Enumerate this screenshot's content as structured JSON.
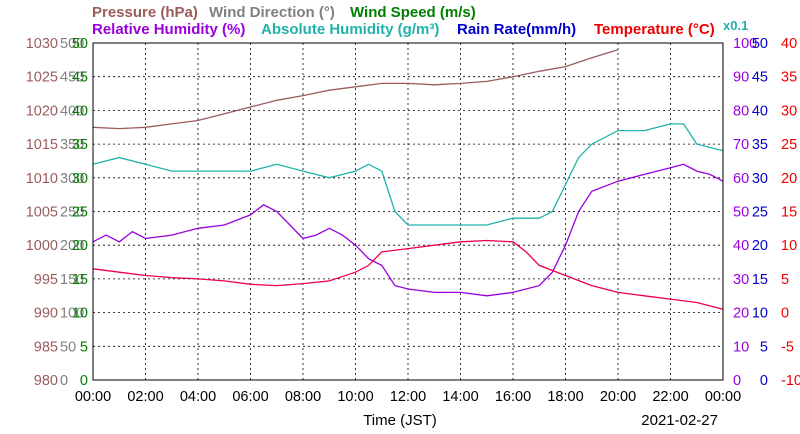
{
  "chart_data": {
    "type": "line",
    "titles": {
      "pressure": "Pressure (hPa)",
      "wind_dir": "Wind Direction (°)",
      "wind_speed": "Wind Speed (m/s)",
      "rel_hum": "Relative Humidity (%)",
      "abs_hum": "Absolute Humidity (g/m³)",
      "rain": "Rain Rate(mm/h)",
      "temp": "Temperature (°C)",
      "abs_hum_factor": "x0.1"
    },
    "xlabel": "Time (JST)",
    "date": "2021-02-27",
    "x_ticks": [
      "00:00",
      "02:00",
      "04:00",
      "06:00",
      "08:00",
      "10:00",
      "12:00",
      "14:00",
      "16:00",
      "18:00",
      "20:00",
      "22:00",
      "00:00"
    ],
    "x_range_hours": [
      0,
      24
    ],
    "grid": true,
    "axes": {
      "pressure": {
        "ticks": [
          "1030",
          "1025",
          "1020",
          "1015",
          "1010",
          "1005",
          "1000",
          "995",
          "990",
          "985",
          "980"
        ],
        "range": [
          980,
          1030
        ],
        "color": "#9b5c5c"
      },
      "wind_dir": {
        "ticks": [
          "500",
          "450",
          "400",
          "350",
          "300",
          "250",
          "200",
          "150",
          "100",
          "50",
          "0"
        ],
        "range": [
          0,
          500
        ],
        "color": "#808080"
      },
      "wind_speed": {
        "ticks": [
          "50",
          "45",
          "40",
          "35",
          "30",
          "25",
          "20",
          "15",
          "10",
          "5",
          "0"
        ],
        "range": [
          0,
          50
        ],
        "color": "#008000"
      },
      "rel_hum": {
        "ticks": [
          "100",
          "90",
          "80",
          "70",
          "60",
          "50",
          "40",
          "30",
          "20",
          "10",
          "0"
        ],
        "range": [
          0,
          100
        ],
        "color": "#9900dd"
      },
      "rain": {
        "ticks": [
          "50",
          "45",
          "40",
          "35",
          "30",
          "25",
          "20",
          "15",
          "10",
          "5",
          "0"
        ],
        "range": [
          0,
          50
        ],
        "color": "#0000cc"
      },
      "temp": {
        "ticks": [
          "40",
          "35",
          "30",
          "25",
          "20",
          "15",
          "10",
          "5",
          "0",
          "-5",
          "-10"
        ],
        "range": [
          -10,
          40
        ],
        "color": "#ee0000"
      }
    },
    "colors": {
      "pressure": "#9b5c5c",
      "wind_dir": "#808080",
      "wind_speed": "#008000",
      "rel_hum": "#9900dd",
      "abs_hum": "#20b2aa",
      "rain": "#0000cc",
      "temp": "#ee0044"
    },
    "series": [
      {
        "name": "Pressure (hPa)",
        "key": "pressure",
        "unit": "hPa",
        "points": [
          [
            0,
            1017.5
          ],
          [
            1,
            1017.3
          ],
          [
            2,
            1017.5
          ],
          [
            3,
            1018
          ],
          [
            4,
            1018.5
          ],
          [
            5,
            1019.5
          ],
          [
            6,
            1020.5
          ],
          [
            7,
            1021.5
          ],
          [
            8,
            1022.2
          ],
          [
            9,
            1023
          ],
          [
            10,
            1023.5
          ],
          [
            11,
            1024
          ],
          [
            12,
            1024
          ],
          [
            13,
            1023.8
          ],
          [
            14,
            1024
          ],
          [
            15,
            1024.3
          ],
          [
            16,
            1025
          ],
          [
            17,
            1025.8
          ],
          [
            18,
            1026.5
          ],
          [
            19,
            1027.8
          ],
          [
            20,
            1029
          ]
        ]
      },
      {
        "name": "Relative Humidity (%)",
        "key": "rel_hum",
        "unit": "%",
        "points": [
          [
            0,
            41
          ],
          [
            0.5,
            43
          ],
          [
            1,
            41
          ],
          [
            1.5,
            44
          ],
          [
            2,
            42
          ],
          [
            3,
            43
          ],
          [
            4,
            45
          ],
          [
            5,
            46
          ],
          [
            6,
            49
          ],
          [
            6.5,
            52
          ],
          [
            7,
            50
          ],
          [
            7.5,
            46
          ],
          [
            8,
            42
          ],
          [
            8.5,
            43
          ],
          [
            9,
            45
          ],
          [
            9.5,
            43
          ],
          [
            10,
            40
          ],
          [
            10.5,
            36
          ],
          [
            11,
            34
          ],
          [
            11.5,
            28
          ],
          [
            12,
            27
          ],
          [
            13,
            26
          ],
          [
            14,
            26
          ],
          [
            15,
            25
          ],
          [
            16,
            26
          ],
          [
            17,
            28
          ],
          [
            17.5,
            32
          ],
          [
            18,
            40
          ],
          [
            18.5,
            50
          ],
          [
            19,
            56
          ],
          [
            20,
            59
          ],
          [
            21,
            61
          ],
          [
            22,
            63
          ],
          [
            22.5,
            64
          ],
          [
            23,
            62
          ],
          [
            23.5,
            61
          ],
          [
            24,
            59
          ]
        ]
      },
      {
        "name": "Absolute Humidity (g/m³) x0.1",
        "key": "abs_hum",
        "unit": "g/m³ x0.1",
        "points": [
          [
            0,
            32
          ],
          [
            1,
            33
          ],
          [
            2,
            32
          ],
          [
            3,
            31
          ],
          [
            4,
            31
          ],
          [
            5,
            31
          ],
          [
            6,
            31
          ],
          [
            7,
            32
          ],
          [
            8,
            31
          ],
          [
            9,
            30
          ],
          [
            10,
            31
          ],
          [
            10.5,
            32
          ],
          [
            11,
            31
          ],
          [
            11.5,
            25
          ],
          [
            12,
            23
          ],
          [
            13,
            23
          ],
          [
            14,
            23
          ],
          [
            15,
            23
          ],
          [
            16,
            24
          ],
          [
            17,
            24
          ],
          [
            17.5,
            25
          ],
          [
            18,
            29
          ],
          [
            18.5,
            33
          ],
          [
            19,
            35
          ],
          [
            20,
            37
          ],
          [
            21,
            37
          ],
          [
            22,
            38
          ],
          [
            22.5,
            38
          ],
          [
            23,
            35
          ],
          [
            24,
            34
          ]
        ]
      },
      {
        "name": "Temperature (°C)",
        "key": "temp",
        "unit": "°C",
        "points": [
          [
            0,
            6.5
          ],
          [
            1,
            6
          ],
          [
            2,
            5.5
          ],
          [
            3,
            5.2
          ],
          [
            4,
            5
          ],
          [
            5,
            4.7
          ],
          [
            6,
            4.2
          ],
          [
            7,
            4
          ],
          [
            8,
            4.3
          ],
          [
            9,
            4.7
          ],
          [
            10,
            6
          ],
          [
            10.5,
            7
          ],
          [
            11,
            9
          ],
          [
            12,
            9.5
          ],
          [
            13,
            10
          ],
          [
            14,
            10.5
          ],
          [
            15,
            10.7
          ],
          [
            16,
            10.5
          ],
          [
            16.5,
            9
          ],
          [
            17,
            7
          ],
          [
            18,
            5.5
          ],
          [
            19,
            4
          ],
          [
            20,
            3
          ],
          [
            21,
            2.5
          ],
          [
            22,
            2
          ],
          [
            23,
            1.5
          ],
          [
            24,
            0.5
          ]
        ]
      }
    ]
  }
}
